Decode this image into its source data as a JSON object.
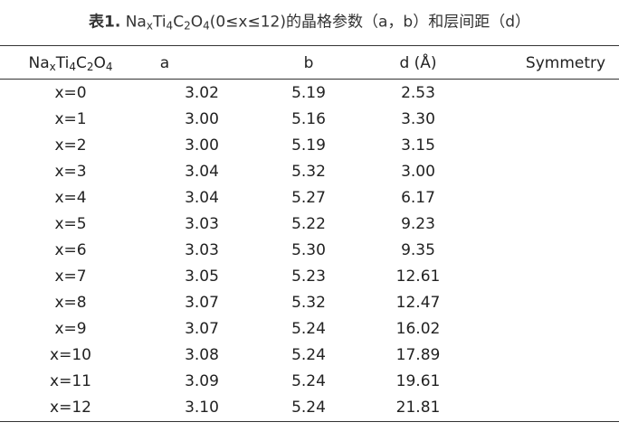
{
  "title": {
    "label": "表1.",
    "parts": [
      {
        "t": "Na",
        "sub": "x"
      },
      {
        "t": "Ti",
        "sub": "4"
      },
      {
        "t": "C",
        "sub": "2"
      },
      {
        "t": "O",
        "sub": "4"
      },
      {
        "t": "(0≤x≤12)的晶格参数（a，b）和层间距（d）"
      }
    ]
  },
  "table": {
    "first_column": [
      {
        "t": "Na",
        "sub": "x"
      },
      {
        "t": "Ti",
        "sub": "4"
      },
      {
        "t": "C",
        "sub": "2"
      },
      {
        "t": "O",
        "sub": "4"
      }
    ],
    "columns": [
      "a",
      "b",
      "d (Å)",
      "Symmetry"
    ],
    "rows": [
      [
        "x=0",
        "3.02",
        "5.19",
        "2.53"
      ],
      [
        "x=1",
        "3.00",
        "5.16",
        "3.30"
      ],
      [
        "x=2",
        "3.00",
        "5.19",
        "3.15"
      ],
      [
        "x=3",
        "3.04",
        "5.32",
        "3.00"
      ],
      [
        "x=4",
        "3.04",
        "5.27",
        "6.17"
      ],
      [
        "x=5",
        "3.03",
        "5.22",
        "9.23"
      ],
      [
        "x=6",
        "3.03",
        "5.30",
        "9.35"
      ],
      [
        "x=7",
        "3.05",
        "5.23",
        "12.61"
      ],
      [
        "x=8",
        "3.07",
        "5.32",
        "12.47"
      ],
      [
        "x=9",
        "3.07",
        "5.24",
        "16.02"
      ],
      [
        "x=10",
        "3.08",
        "5.24",
        "17.89"
      ],
      [
        "x=11",
        "3.09",
        "5.24",
        "19.61"
      ],
      [
        "x=12",
        "3.10",
        "5.24",
        "21.81"
      ]
    ]
  }
}
